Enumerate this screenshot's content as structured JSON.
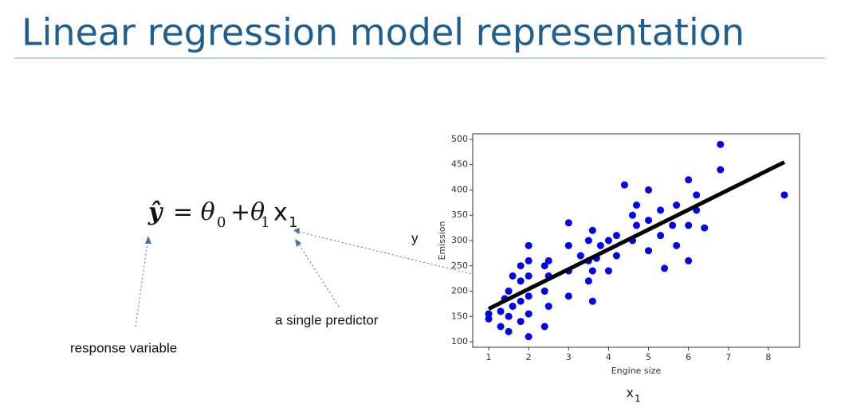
{
  "slide": {
    "title": "Linear regression model representation",
    "equation": {
      "y_hat": "ŷ",
      "eq": "= θ",
      "sub0": "0",
      "plus": "+θ",
      "sub1": "1",
      "x": "x",
      "sub2": "1"
    },
    "y_label": "y",
    "x_label": "x",
    "x_label_sub": "1",
    "response_note": "response variable",
    "predictor_note": "a single predictor"
  },
  "chart_data": {
    "type": "scatter",
    "xlabel": "Engine size",
    "ylabel": "Emission",
    "color": "#0000ee",
    "x": [
      1.0,
      1.0,
      1.3,
      1.3,
      1.4,
      1.5,
      1.5,
      1.5,
      1.6,
      1.6,
      1.8,
      1.8,
      1.8,
      1.8,
      2.0,
      2.0,
      2.0,
      2.0,
      2.0,
      2.0,
      2.4,
      2.4,
      2.4,
      2.5,
      2.5,
      2.5,
      3.0,
      3.0,
      3.0,
      3.0,
      3.3,
      3.5,
      3.5,
      3.5,
      3.6,
      3.6,
      3.6,
      3.7,
      3.8,
      4.0,
      4.0,
      4.2,
      4.2,
      4.4,
      4.6,
      4.6,
      4.7,
      4.7,
      5.0,
      5.0,
      5.0,
      5.3,
      5.3,
      5.4,
      5.6,
      5.7,
      5.7,
      6.0,
      6.0,
      6.0,
      6.2,
      6.2,
      6.4,
      6.8,
      6.8,
      8.4
    ],
    "values": [
      145,
      155,
      130,
      160,
      185,
      120,
      150,
      200,
      170,
      230,
      140,
      180,
      220,
      250,
      110,
      155,
      190,
      230,
      260,
      290,
      130,
      200,
      250,
      170,
      230,
      260,
      190,
      240,
      290,
      335,
      270,
      220,
      260,
      300,
      180,
      240,
      320,
      265,
      290,
      240,
      300,
      270,
      310,
      410,
      300,
      350,
      330,
      370,
      280,
      340,
      400,
      310,
      360,
      245,
      330,
      290,
      370,
      260,
      330,
      420,
      360,
      390,
      325,
      440,
      490,
      390
    ],
    "fit_line": {
      "x": [
        1.0,
        8.4
      ],
      "y": [
        165,
        455
      ],
      "color": "#000000"
    },
    "xlim": [
      0.6,
      8.78
    ],
    "ylim": [
      89,
      511
    ],
    "xticks": [
      1,
      2,
      3,
      4,
      5,
      6,
      7,
      8
    ],
    "yticks": [
      100,
      150,
      200,
      250,
      300,
      350,
      400,
      450,
      500
    ]
  }
}
